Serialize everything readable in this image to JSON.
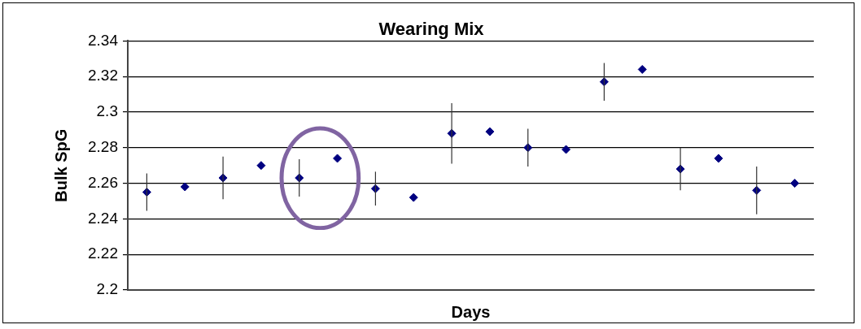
{
  "chart_data": {
    "type": "scatter",
    "title": "Wearing Mix",
    "xlabel": "Days",
    "ylabel": "Bulk SpG",
    "categories": [
      null,
      null,
      null,
      null,
      null,
      null,
      null,
      null,
      null,
      null,
      null,
      null,
      null,
      null,
      null,
      null,
      null,
      null
    ],
    "values": [
      2.255,
      2.258,
      2.263,
      2.27,
      2.263,
      2.274,
      2.257,
      2.252,
      2.288,
      2.289,
      2.28,
      2.279,
      2.317,
      2.324,
      2.268,
      2.274,
      2.256,
      2.26
    ],
    "errors": [
      0.0105,
      null,
      0.012,
      null,
      0.0105,
      null,
      0.0095,
      null,
      0.017,
      null,
      0.0106,
      null,
      0.0106,
      null,
      0.012,
      null,
      0.0134,
      null
    ],
    "color": "#000080",
    "marker": "diamond",
    "ylim": [
      2.2,
      2.34
    ],
    "yticks": [
      2.2,
      2.22,
      2.24,
      2.26,
      2.28,
      2.3,
      2.32,
      2.34
    ],
    "grid": "y",
    "legend": false
  }
}
